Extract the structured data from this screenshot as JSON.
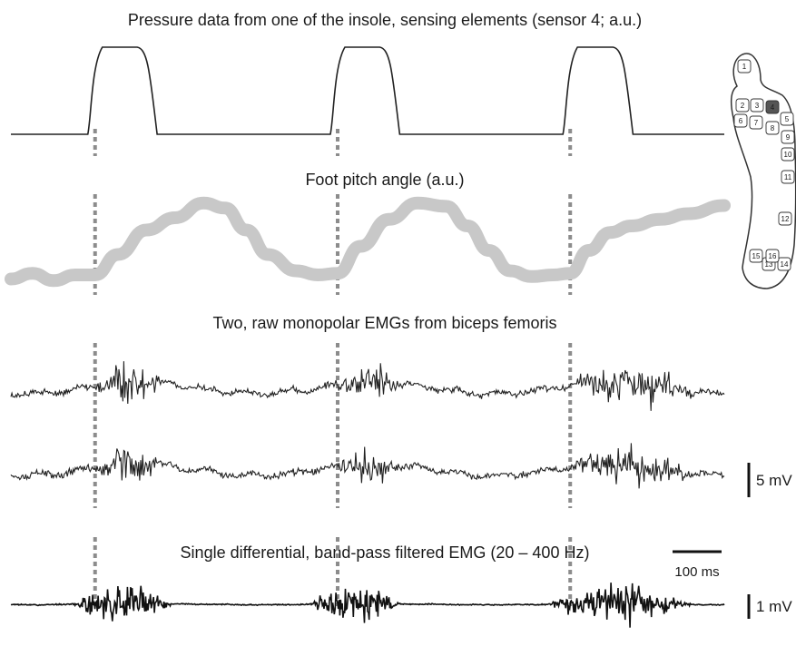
{
  "chart_data": {
    "type": "line",
    "time_scale_label": "100 ms",
    "gait_event_markers": [
      0.118,
      0.458,
      0.784
    ],
    "insole": {
      "sensor_labels": [
        "1",
        "2",
        "3",
        "4",
        "5",
        "6",
        "7",
        "8",
        "9",
        "10",
        "11",
        "12",
        "13",
        "14",
        "15",
        "16"
      ],
      "highlighted_sensor": "4",
      "highlight_color": "#555555"
    },
    "panels": [
      {
        "id": "pressure",
        "title": "Pressure data from one of the insole, sensing elements (sensor 4; a.u.)",
        "color": "#222222",
        "contact_phases": [
          {
            "start": 0.118,
            "end": 0.205
          },
          {
            "start": 0.458,
            "end": 0.545
          },
          {
            "start": 0.784,
            "end": 0.872
          }
        ]
      },
      {
        "id": "pitch",
        "title": "Foot pitch angle (a.u.)",
        "color": "#c8c8c8",
        "x": [
          0.0,
          0.03,
          0.06,
          0.09,
          0.118,
          0.15,
          0.19,
          0.23,
          0.27,
          0.3,
          0.33,
          0.36,
          0.4,
          0.43,
          0.458,
          0.49,
          0.53,
          0.57,
          0.61,
          0.64,
          0.67,
          0.7,
          0.73,
          0.76,
          0.784,
          0.81,
          0.84,
          0.87,
          0.91,
          0.95,
          1.0
        ],
        "y": [
          0.05,
          0.12,
          0.03,
          0.1,
          0.1,
          0.35,
          0.65,
          0.8,
          0.98,
          0.92,
          0.65,
          0.35,
          0.15,
          0.1,
          0.12,
          0.45,
          0.78,
          0.98,
          0.94,
          0.7,
          0.4,
          0.15,
          0.08,
          0.1,
          0.12,
          0.4,
          0.62,
          0.7,
          0.78,
          0.85,
          0.95
        ]
      },
      {
        "id": "emg_mono",
        "title": "Two, raw monopolar EMGs from biceps femoris",
        "color": "#222222",
        "scale_bar_label": "5 mV",
        "burst_windows": [
          [
            0.118,
            0.23
          ],
          [
            0.458,
            0.56
          ],
          [
            0.784,
            0.99
          ]
        ]
      },
      {
        "id": "emg_diff",
        "title": "Single differential, band-pass filtered EMG (20 – 400 Hz)",
        "color": "#111111",
        "scale_bar_label": "1 mV",
        "burst_windows": [
          [
            0.085,
            0.255
          ],
          [
            0.418,
            0.575
          ],
          [
            0.75,
            0.995
          ]
        ]
      }
    ]
  }
}
